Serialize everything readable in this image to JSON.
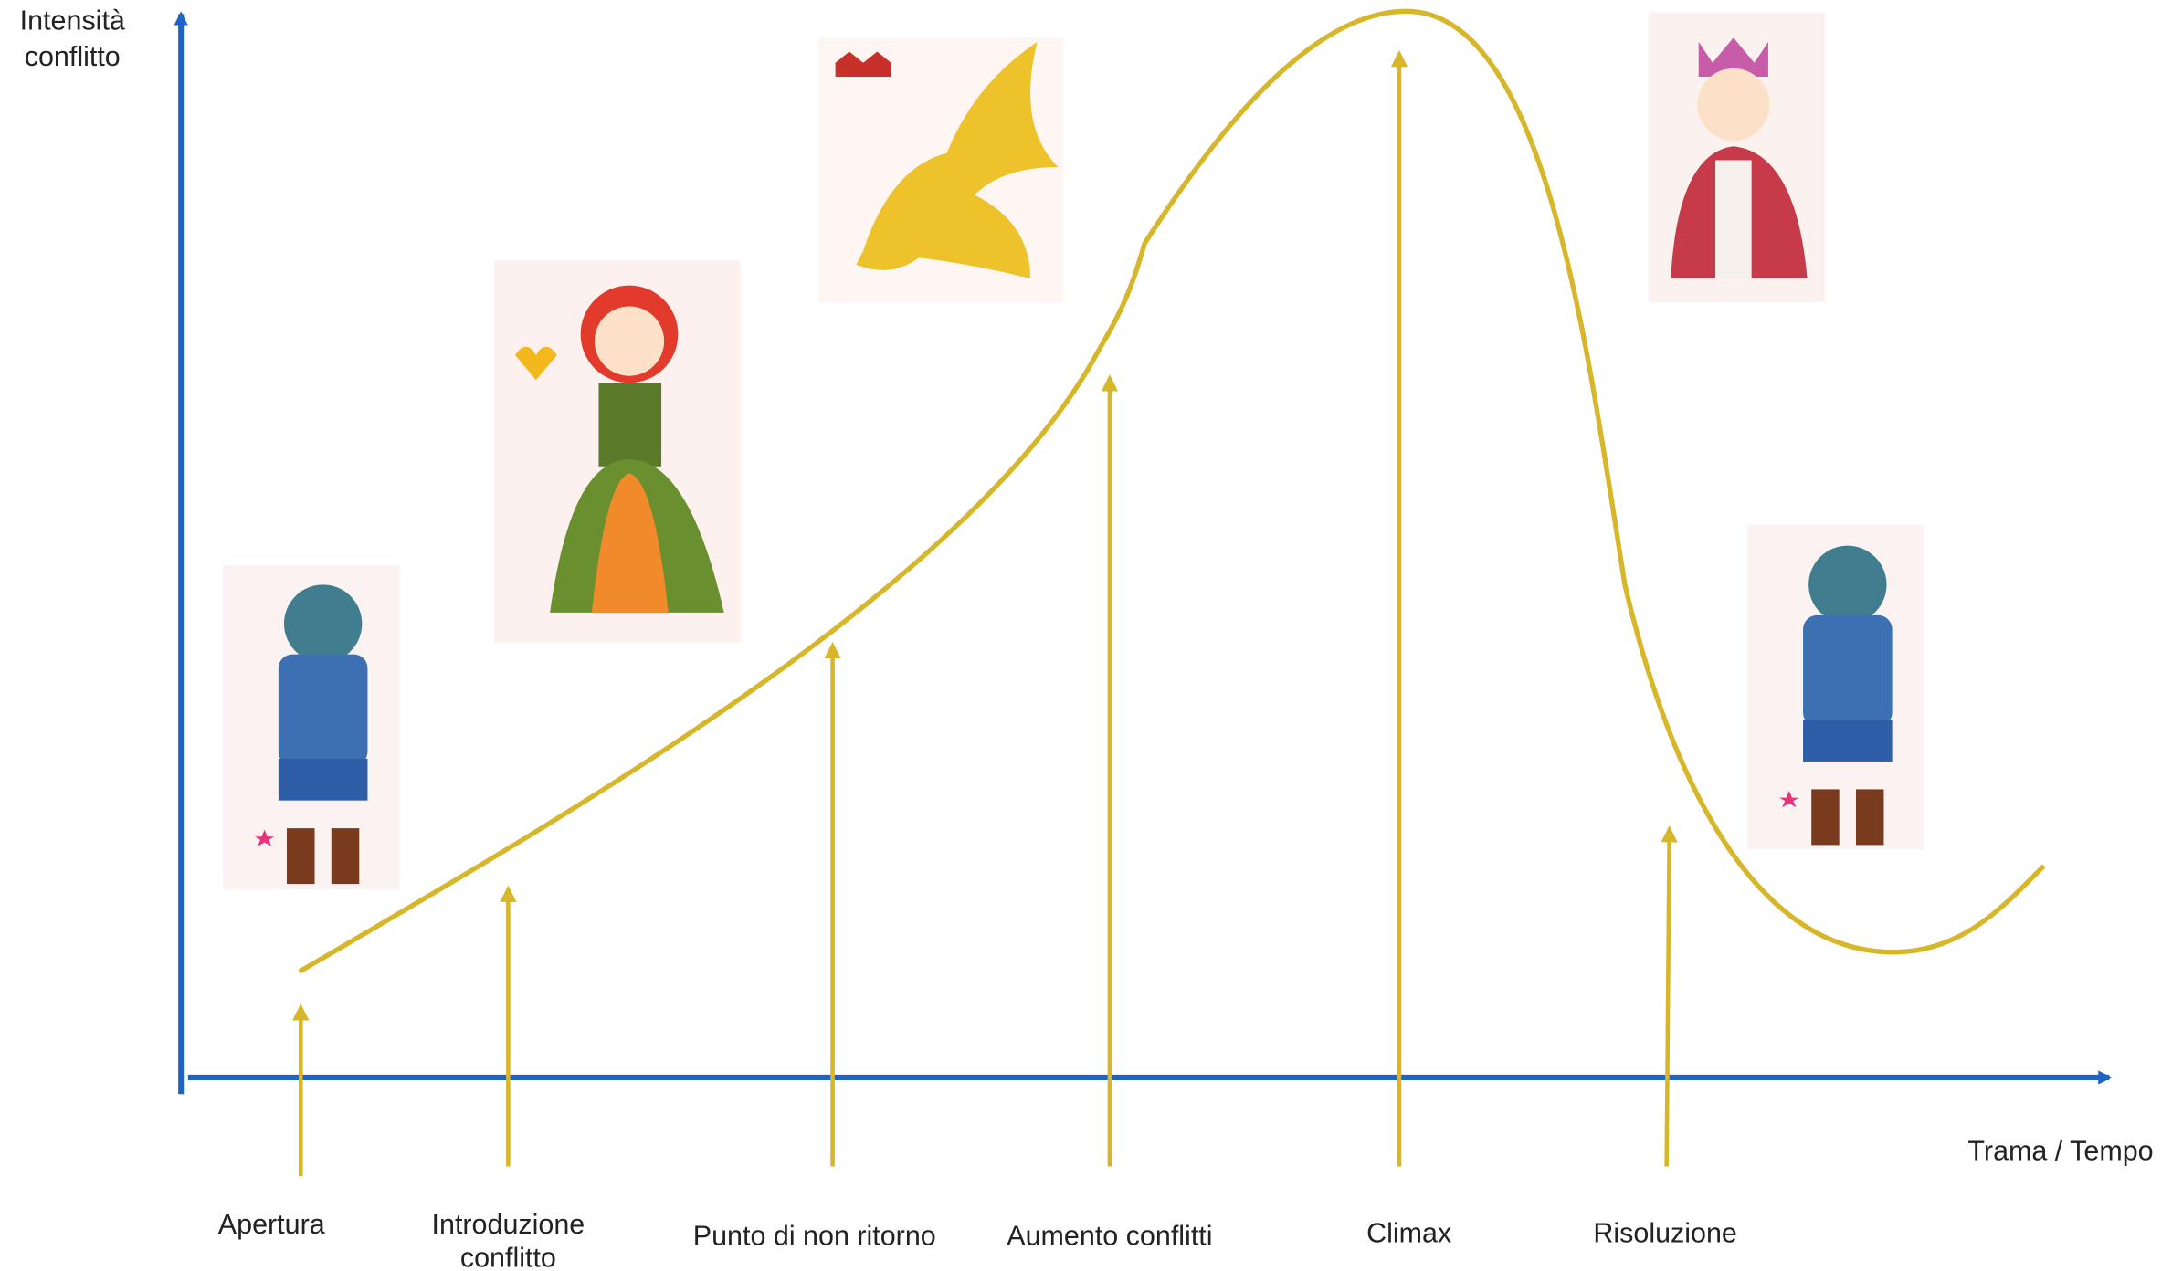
{
  "axes": {
    "y_label": [
      "Intensità",
      "conflitto"
    ],
    "x_label": "Trama / Tempo"
  },
  "stages": [
    {
      "label": [
        "Apertura"
      ]
    },
    {
      "label": [
        "Introduzione",
        "conflitto"
      ]
    },
    {
      "label": [
        "Punto di non ritorno"
      ]
    },
    {
      "label": [
        "Aumento conflitti"
      ]
    },
    {
      "label": [
        "Climax"
      ]
    },
    {
      "label": [
        "Risoluzione"
      ]
    }
  ]
}
